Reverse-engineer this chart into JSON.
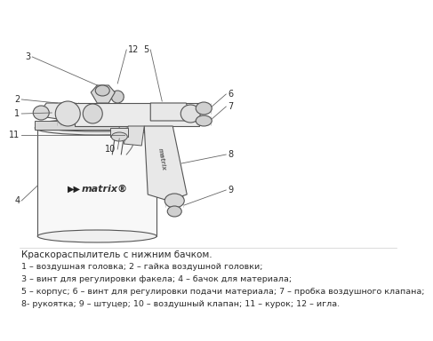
{
  "background_color": "#ffffff",
  "title_text": "Краскораспылитель с нижним бачком.",
  "description_lines": [
    "1 – воздушная головка; 2 – гайка воздушной головки;",
    "3 – винт для регулировки факела; 4 – бачок для материала;",
    "5 – корпус; 6 – винт для регулировки подачи материала; 7 – пробка воздушного клапана;",
    "8- рукоятка; 9 – штуцер; 10 – воздушный клапан; 11 – курок; 12 – игла."
  ],
  "font_size_title": 7.5,
  "font_size_body": 6.8,
  "text_color": "#2a2a2a",
  "draw_color": "#555555",
  "draw_color_dark": "#333333",
  "draw_color_light": "#888888",
  "face_light": "#f0f0f0",
  "face_mid": "#e0e0e0",
  "face_dark": "#cccccc"
}
